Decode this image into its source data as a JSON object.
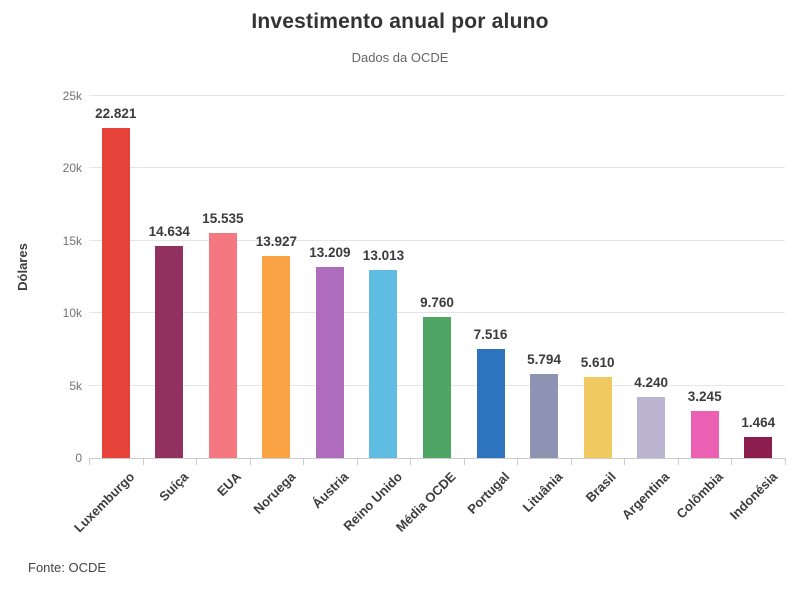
{
  "chart_data": {
    "type": "bar",
    "title": "Investimento anual por aluno",
    "subtitle": "Dados da OCDE",
    "xlabel": "",
    "ylabel": "Dólares",
    "ylim": [
      0,
      25000
    ],
    "grid": true,
    "legend": "none",
    "categories": [
      "Luxemburgo",
      "Suíça",
      "EUA",
      "Noruega",
      "Áustria",
      "Reino Unido",
      "Média OCDE",
      "Portugal",
      "Lituânia",
      "Brasil",
      "Argentina",
      "Colômbia",
      "Indonésia"
    ],
    "values": [
      22821,
      14634,
      15535,
      13927,
      13209,
      13013,
      9760,
      7516,
      5794,
      5610,
      4240,
      3245,
      1464
    ],
    "value_labels": [
      "22.821",
      "14.634",
      "15.535",
      "13.927",
      "13.209",
      "13.013",
      "9.760",
      "7.516",
      "5.794",
      "5.610",
      "4.240",
      "3.245",
      "1.464"
    ],
    "bar_colors": [
      "#e8433a",
      "#91315f",
      "#f5777f",
      "#faa344",
      "#b06cbc",
      "#5fbde1",
      "#4ea564",
      "#2e73bd",
      "#8e93b4",
      "#f0c960",
      "#bab4d1",
      "#ec60b4",
      "#8c1e4f"
    ],
    "yticks": [
      {
        "value": 0,
        "label": "0"
      },
      {
        "value": 5000,
        "label": "5k"
      },
      {
        "value": 10000,
        "label": "10k"
      },
      {
        "value": 15000,
        "label": "15k"
      },
      {
        "value": 20000,
        "label": "20k"
      },
      {
        "value": 25000,
        "label": "25k"
      }
    ],
    "source": "Fonte: OCDE"
  },
  "theme": {
    "gridline_color": "#e5e5e5",
    "axis_color": "#cccccc",
    "title_color": "#333333",
    "subtitle_color": "#666666",
    "tick_label_color": "#737373",
    "value_label_color": "#3b3b3b",
    "category_label_color": "#3d3d3d",
    "background": "#ffffff"
  }
}
